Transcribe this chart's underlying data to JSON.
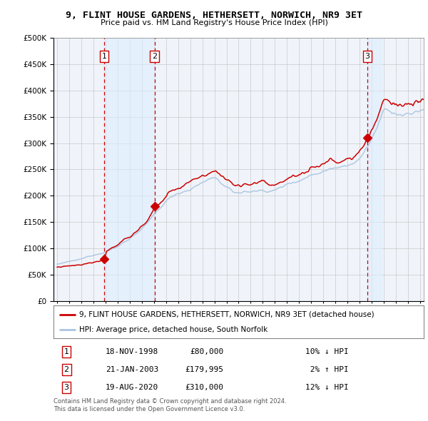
{
  "title": "9, FLINT HOUSE GARDENS, HETHERSETT, NORWICH, NR9 3ET",
  "subtitle": "Price paid vs. HM Land Registry's House Price Index (HPI)",
  "legend_line1": "9, FLINT HOUSE GARDENS, HETHERSETT, NORWICH, NR9 3ET (detached house)",
  "legend_line2": "HPI: Average price, detached house, South Norfolk",
  "footer1": "Contains HM Land Registry data © Crown copyright and database right 2024.",
  "footer2": "This data is licensed under the Open Government Licence v3.0.",
  "sales": [
    {
      "num": 1,
      "date": "18-NOV-1998",
      "price": 80000,
      "hpi_rel": "10% ↓ HPI",
      "year": 1998.88
    },
    {
      "num": 2,
      "date": "21-JAN-2003",
      "price": 179995,
      "hpi_rel": "2% ↑ HPI",
      "year": 2003.05
    },
    {
      "num": 3,
      "date": "19-AUG-2020",
      "price": 310000,
      "hpi_rel": "12% ↓ HPI",
      "year": 2020.63
    }
  ],
  "hpi_color": "#aac4e0",
  "price_color": "#cc0000",
  "sale_dot_color": "#cc0000",
  "vline_color": "#cc0000",
  "vline_shade": "#ddeeff",
  "ylim": [
    0,
    500000
  ],
  "xlim_start": 1994.7,
  "xlim_end": 2025.3,
  "background_color": "#ffffff",
  "plot_bg_color": "#f0f4fa"
}
